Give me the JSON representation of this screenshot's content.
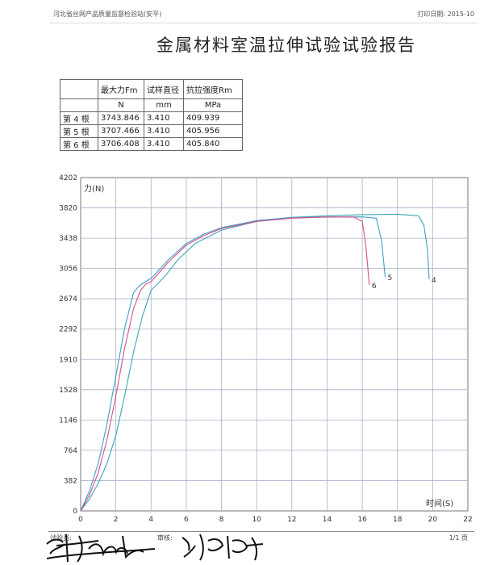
{
  "header": {
    "org": "河北省丝网产品质量监督检验站(安平)",
    "print_date_label": "打印日期:",
    "print_date": "2015-10"
  },
  "title": "金属材料室温拉伸试验试验报告",
  "table": {
    "headers": [
      "",
      "最大力Fm",
      "试样直径",
      "抗拉强度Rm"
    ],
    "units": [
      "",
      "N",
      "mm",
      "MPa"
    ],
    "rows": [
      [
        "第 4 根",
        "3743.846",
        "3.410",
        "409.939"
      ],
      [
        "第 5 根",
        "3707.466",
        "3.410",
        "405.956"
      ],
      [
        "第 6 根",
        "3706.408",
        "3.410",
        "405.840"
      ]
    ]
  },
  "footer": {
    "tester_label": "试验员:",
    "reviewer_label": "审核:",
    "page": "1/1  页"
  },
  "colors": {
    "series4": "#3aa6b8",
    "series5": "#3c9fc6",
    "series6": "#d94f87",
    "grid": "#a9b0c8"
  },
  "chart_data": {
    "type": "line",
    "title": "",
    "xlabel": "时间(S)",
    "ylabel": "力(N)",
    "xlim": [
      0,
      22
    ],
    "ylim": [
      0,
      4202
    ],
    "xticks": [
      "0",
      "2",
      "4",
      "6",
      "8",
      "10",
      "12",
      "14",
      "16",
      "18",
      "20",
      "22"
    ],
    "yticks": [
      "0",
      "382",
      "764",
      "1146",
      "1528",
      "1910",
      "2292",
      "2674",
      "3056",
      "3438",
      "3820",
      "4202"
    ],
    "grid": true,
    "series": [
      {
        "name": "4",
        "color": "#3aa6b8",
        "x": [
          0,
          0.5,
          1,
          1.5,
          2,
          2.5,
          3,
          3.5,
          4,
          4.4,
          4.8,
          5.5,
          6.5,
          8,
          10,
          12,
          14,
          16,
          18,
          19.2,
          19.5,
          19.7,
          19.8
        ],
        "y": [
          0,
          150,
          350,
          600,
          950,
          1450,
          2000,
          2450,
          2780,
          2870,
          2960,
          3160,
          3370,
          3540,
          3650,
          3700,
          3720,
          3735,
          3740,
          3720,
          3600,
          3300,
          2920
        ]
      },
      {
        "name": "5",
        "color": "#3c9fc6",
        "x": [
          0,
          0.5,
          1,
          1.5,
          2,
          2.5,
          3,
          3.3,
          3.6,
          4,
          5,
          6,
          7,
          8,
          10,
          12,
          14,
          16,
          16.8,
          17.1,
          17.3
        ],
        "y": [
          0,
          250,
          600,
          1100,
          1700,
          2300,
          2750,
          2830,
          2880,
          2930,
          3170,
          3370,
          3490,
          3570,
          3660,
          3700,
          3705,
          3707,
          3690,
          3400,
          2950
        ]
      },
      {
        "name": "6",
        "color": "#d94f87",
        "x": [
          0,
          0.5,
          1,
          1.5,
          2,
          2.5,
          3,
          3.4,
          3.7,
          4,
          5,
          6,
          7,
          8,
          10,
          12,
          14,
          15.5,
          16,
          16.2,
          16.4
        ],
        "y": [
          0,
          200,
          480,
          900,
          1450,
          2050,
          2550,
          2780,
          2860,
          2890,
          3140,
          3350,
          3470,
          3560,
          3650,
          3690,
          3704,
          3706,
          3650,
          3350,
          2850
        ]
      }
    ]
  }
}
